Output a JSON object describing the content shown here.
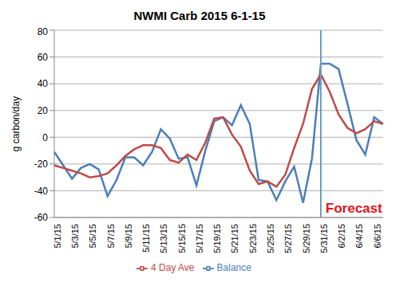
{
  "chart_data": {
    "type": "line",
    "title": "NWMI Carb 2015 6-1-15",
    "y_label": "g carbon/day",
    "categories": [
      "5/1/15",
      null,
      "5/3/15",
      null,
      "5/5/15",
      null,
      "5/7/15",
      null,
      "5/9/15",
      null,
      "5/11/15",
      null,
      "5/13/15",
      null,
      "5/15/15",
      null,
      "5/17/15",
      null,
      "5/19/15",
      null,
      "5/21/15",
      null,
      "5/23/15",
      null,
      "5/25/15",
      null,
      "5/27/15",
      null,
      "5/29/15",
      null,
      "5/31/15",
      null,
      "6/2/15",
      null,
      "6/4/15",
      null,
      "6/6/15",
      null
    ],
    "series": [
      {
        "name": "Balance",
        "color": "#4a7ebb",
        "values": [
          -11,
          -21,
          -31,
          -23,
          -20,
          -24,
          -44,
          -32,
          -15,
          -15,
          -21,
          -11,
          6,
          -1,
          -16,
          -15,
          -36,
          -10,
          12,
          15,
          9,
          24,
          10,
          -32,
          -33,
          -47,
          -33,
          -22,
          -49,
          -16,
          55,
          55,
          51,
          25,
          -2,
          -13,
          15,
          10
        ]
      },
      {
        "name": "4 Day Ave",
        "color": "#be4b48",
        "values": [
          -21,
          -23,
          -25,
          -27,
          -30,
          -29,
          -27,
          -21,
          -14,
          -9,
          -6,
          -6,
          -8,
          -17,
          -19,
          -13,
          -17,
          -4,
          14,
          15,
          2,
          -7,
          -25,
          -35,
          -33,
          -37,
          -28,
          -8,
          10,
          36,
          47,
          34,
          17,
          7,
          3,
          6,
          12,
          10
        ]
      }
    ],
    "ylim": [
      -60,
      80
    ],
    "yticks": [
      -60,
      -40,
      -20,
      0,
      20,
      40,
      60,
      80
    ],
    "grid": true,
    "legend": "bottom",
    "annotations": [
      {
        "text": "Forecast",
        "x": "5/31/15",
        "color": "#e0161c",
        "line_color": "#6b9bc3"
      }
    ]
  }
}
